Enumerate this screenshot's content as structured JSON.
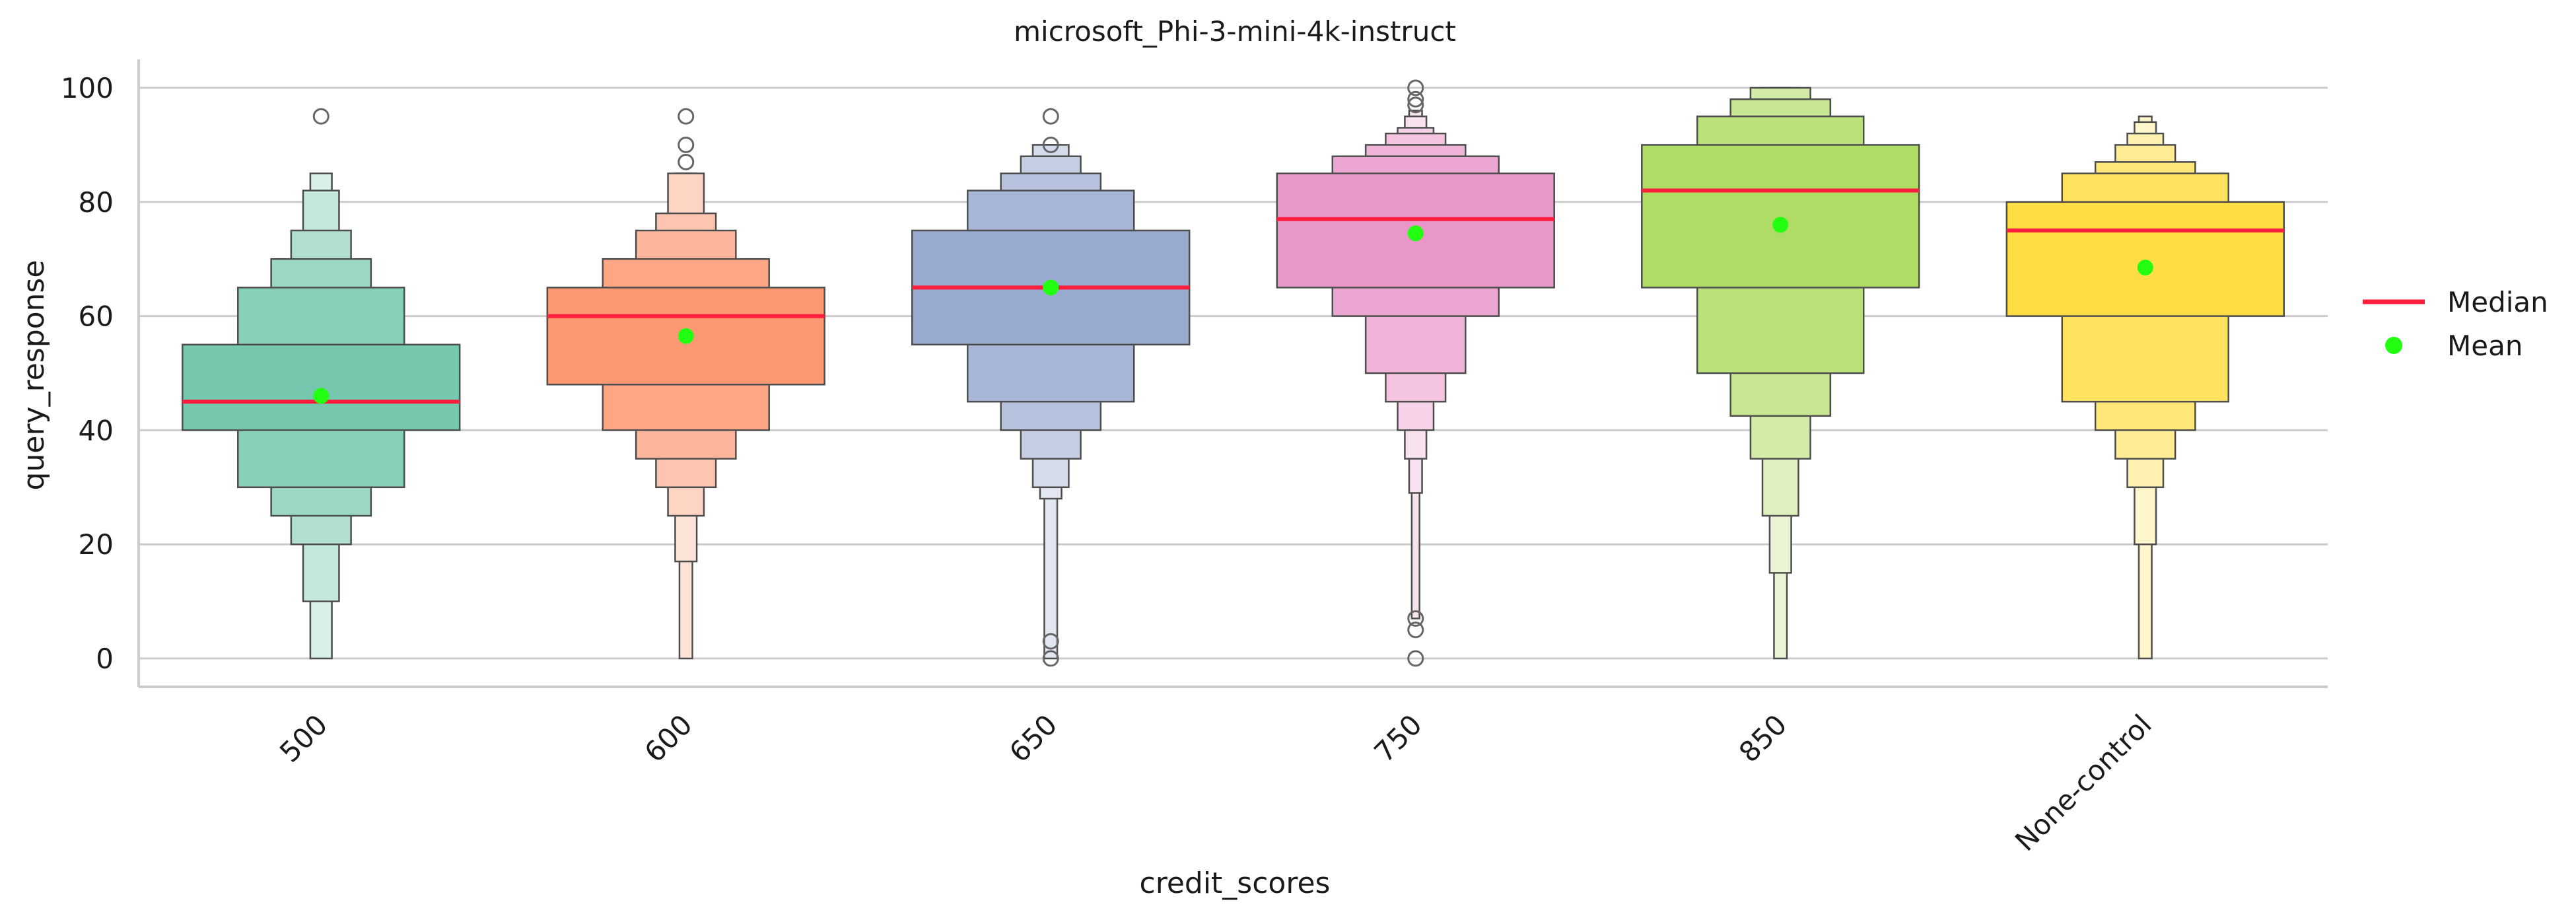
{
  "chart_data": {
    "type": "boxen",
    "title": "microsoft_Phi-3-mini-4k-instruct",
    "xlabel": "credit_scores",
    "ylabel": "query_response",
    "ylim": [
      -5,
      105
    ],
    "yticks": [
      0,
      20,
      40,
      60,
      80,
      100
    ],
    "grid": "horizontal",
    "legend_position": "right",
    "legend": [
      {
        "label": "Median",
        "marker": "line",
        "color": "#ff1f3d"
      },
      {
        "label": "Mean",
        "marker": "dot",
        "color": "#22ff11"
      }
    ],
    "categories": [
      {
        "label": "500",
        "color": "#66c2a5",
        "median": 45,
        "mean": 46,
        "levels": [
          [
            40,
            55
          ],
          [
            30,
            65
          ],
          [
            25,
            70
          ],
          [
            20,
            75
          ],
          [
            10,
            82
          ],
          [
            0,
            85
          ]
        ],
        "outliers": [
          95
        ]
      },
      {
        "label": "600",
        "color": "#fc8d62",
        "median": 60,
        "mean": 56.5,
        "levels": [
          [
            48,
            65
          ],
          [
            40,
            70
          ],
          [
            35,
            75
          ],
          [
            30,
            78
          ],
          [
            25,
            85
          ],
          [
            17,
            85
          ],
          [
            0,
            85
          ]
        ],
        "outliers": [
          87,
          90,
          95
        ]
      },
      {
        "label": "650",
        "color": "#8da0cb",
        "median": 65,
        "mean": 65,
        "levels": [
          [
            55,
            75
          ],
          [
            45,
            82
          ],
          [
            40,
            85
          ],
          [
            35,
            88
          ],
          [
            30,
            90
          ],
          [
            28,
            90
          ],
          [
            0,
            90
          ]
        ],
        "outliers": [
          95,
          90,
          3,
          0
        ]
      },
      {
        "label": "750",
        "color": "#e78ac3",
        "median": 77,
        "mean": 74.5,
        "levels": [
          [
            65,
            85
          ],
          [
            60,
            88
          ],
          [
            50,
            90
          ],
          [
            45,
            92
          ],
          [
            40,
            93
          ],
          [
            35,
            95
          ],
          [
            29,
            96
          ],
          [
            7,
            96
          ]
        ],
        "outliers": [
          100,
          98,
          97,
          7,
          5,
          0
        ]
      },
      {
        "label": "850",
        "color": "#a6d854",
        "median": 82,
        "mean": 76,
        "levels": [
          [
            65,
            90
          ],
          [
            50,
            95
          ],
          [
            42.5,
            98
          ],
          [
            35,
            100
          ],
          [
            25,
            100
          ],
          [
            15,
            100
          ],
          [
            0,
            100
          ]
        ],
        "outliers": []
      },
      {
        "label": "None-control",
        "color": "#ffd92f",
        "median": 75,
        "mean": 68.5,
        "levels": [
          [
            60,
            80
          ],
          [
            45,
            85
          ],
          [
            40,
            87
          ],
          [
            35,
            90
          ],
          [
            30,
            92
          ],
          [
            20,
            94
          ],
          [
            0,
            95
          ]
        ],
        "outliers": []
      }
    ]
  }
}
